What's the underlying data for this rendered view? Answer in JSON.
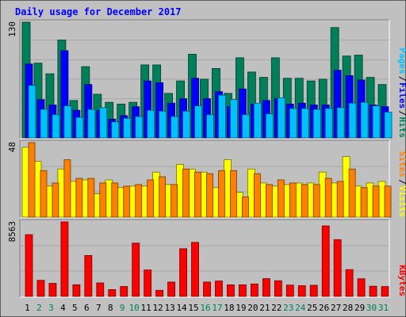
{
  "chart_data": [
    {
      "type": "bar",
      "title": "Daily usage for December 2017",
      "panel": "pages-files-hits",
      "categories": [
        "1",
        "2",
        "3",
        "4",
        "5",
        "6",
        "7",
        "8",
        "9",
        "10",
        "11",
        "12",
        "13",
        "14",
        "15",
        "16",
        "17",
        "18",
        "19",
        "20",
        "21",
        "22",
        "23",
        "24",
        "25",
        "26",
        "27",
        "28",
        "29",
        "30",
        "31"
      ],
      "weekend_days": [
        "2",
        "3",
        "9",
        "10",
        "16",
        "17",
        "23",
        "24",
        "30",
        "31"
      ],
      "ylim": [
        0,
        130
      ],
      "y_max_label": "130",
      "legend": [
        "Pages",
        "Files",
        "Hits"
      ],
      "series": [
        {
          "name": "Hits",
          "color": "#00805a",
          "values": [
            130,
            84,
            72,
            110,
            42,
            80,
            49,
            40,
            38,
            40,
            82,
            82,
            50,
            64,
            94,
            66,
            78,
            50,
            90,
            74,
            68,
            90,
            67,
            67,
            64,
            66,
            124,
            92,
            93,
            68,
            60
          ]
        },
        {
          "name": "Files",
          "color": "#0000ff",
          "values": [
            83,
            43,
            37,
            98,
            31,
            60,
            31,
            21,
            25,
            35,
            64,
            62,
            39,
            44,
            67,
            44,
            52,
            35,
            55,
            38,
            42,
            44,
            38,
            39,
            37,
            37,
            76,
            70,
            65,
            37,
            35
          ]
        },
        {
          "name": "Pages",
          "color": "#00c0ff",
          "values": [
            59,
            32,
            26,
            36,
            23,
            32,
            34,
            18,
            22,
            24,
            31,
            30,
            24,
            30,
            36,
            26,
            48,
            43,
            26,
            39,
            27,
            45,
            33,
            33,
            32,
            33,
            34,
            39,
            40,
            36,
            29
          ]
        }
      ]
    },
    {
      "type": "bar",
      "panel": "visits-sites",
      "categories": [
        "1",
        "2",
        "3",
        "4",
        "5",
        "6",
        "7",
        "8",
        "9",
        "10",
        "11",
        "12",
        "13",
        "14",
        "15",
        "16",
        "17",
        "18",
        "19",
        "20",
        "21",
        "22",
        "23",
        "24",
        "25",
        "26",
        "27",
        "28",
        "29",
        "30",
        "31"
      ],
      "ylim": [
        0,
        48
      ],
      "y_max_label": "48",
      "legend": [
        "Sites",
        "Visits"
      ],
      "series": [
        {
          "name": "Visits",
          "color": "#ffff00",
          "values": [
            45,
            36,
            20,
            31,
            23,
            24,
            15,
            24,
            19,
            20,
            20,
            29,
            21,
            34,
            31,
            29,
            19,
            37,
            16,
            31,
            22,
            20,
            21,
            22,
            22,
            29,
            22,
            39,
            20,
            22,
            23
          ]
        },
        {
          "name": "Sites",
          "color": "#ff8000",
          "values": [
            48,
            30,
            22,
            37,
            25,
            25,
            22,
            22,
            20,
            21,
            24,
            26,
            21,
            31,
            29,
            28,
            30,
            30,
            13,
            28,
            21,
            24,
            22,
            21,
            21,
            25,
            23,
            31,
            19,
            20,
            20
          ]
        }
      ]
    },
    {
      "type": "bar",
      "panel": "kbytes",
      "categories": [
        "1",
        "2",
        "3",
        "4",
        "5",
        "6",
        "7",
        "8",
        "9",
        "10",
        "11",
        "12",
        "13",
        "14",
        "15",
        "16",
        "17",
        "18",
        "19",
        "20",
        "21",
        "22",
        "23",
        "24",
        "25",
        "26",
        "27",
        "28",
        "29",
        "30",
        "31"
      ],
      "ylim": [
        0,
        8563
      ],
      "y_max_label": "8563",
      "legend": [
        "KBytes"
      ],
      "series": [
        {
          "name": "KBytes",
          "color": "#ff0000",
          "values": [
            7095,
            1850,
            1500,
            8563,
            1340,
            4700,
            1550,
            780,
            1140,
            6125,
            3040,
            700,
            1650,
            5480,
            6210,
            1650,
            1770,
            1330,
            1330,
            1430,
            2040,
            1800,
            1300,
            1230,
            1280,
            8105,
            6520,
            3080,
            2030,
            1170,
            1130
          ]
        }
      ]
    }
  ]
}
